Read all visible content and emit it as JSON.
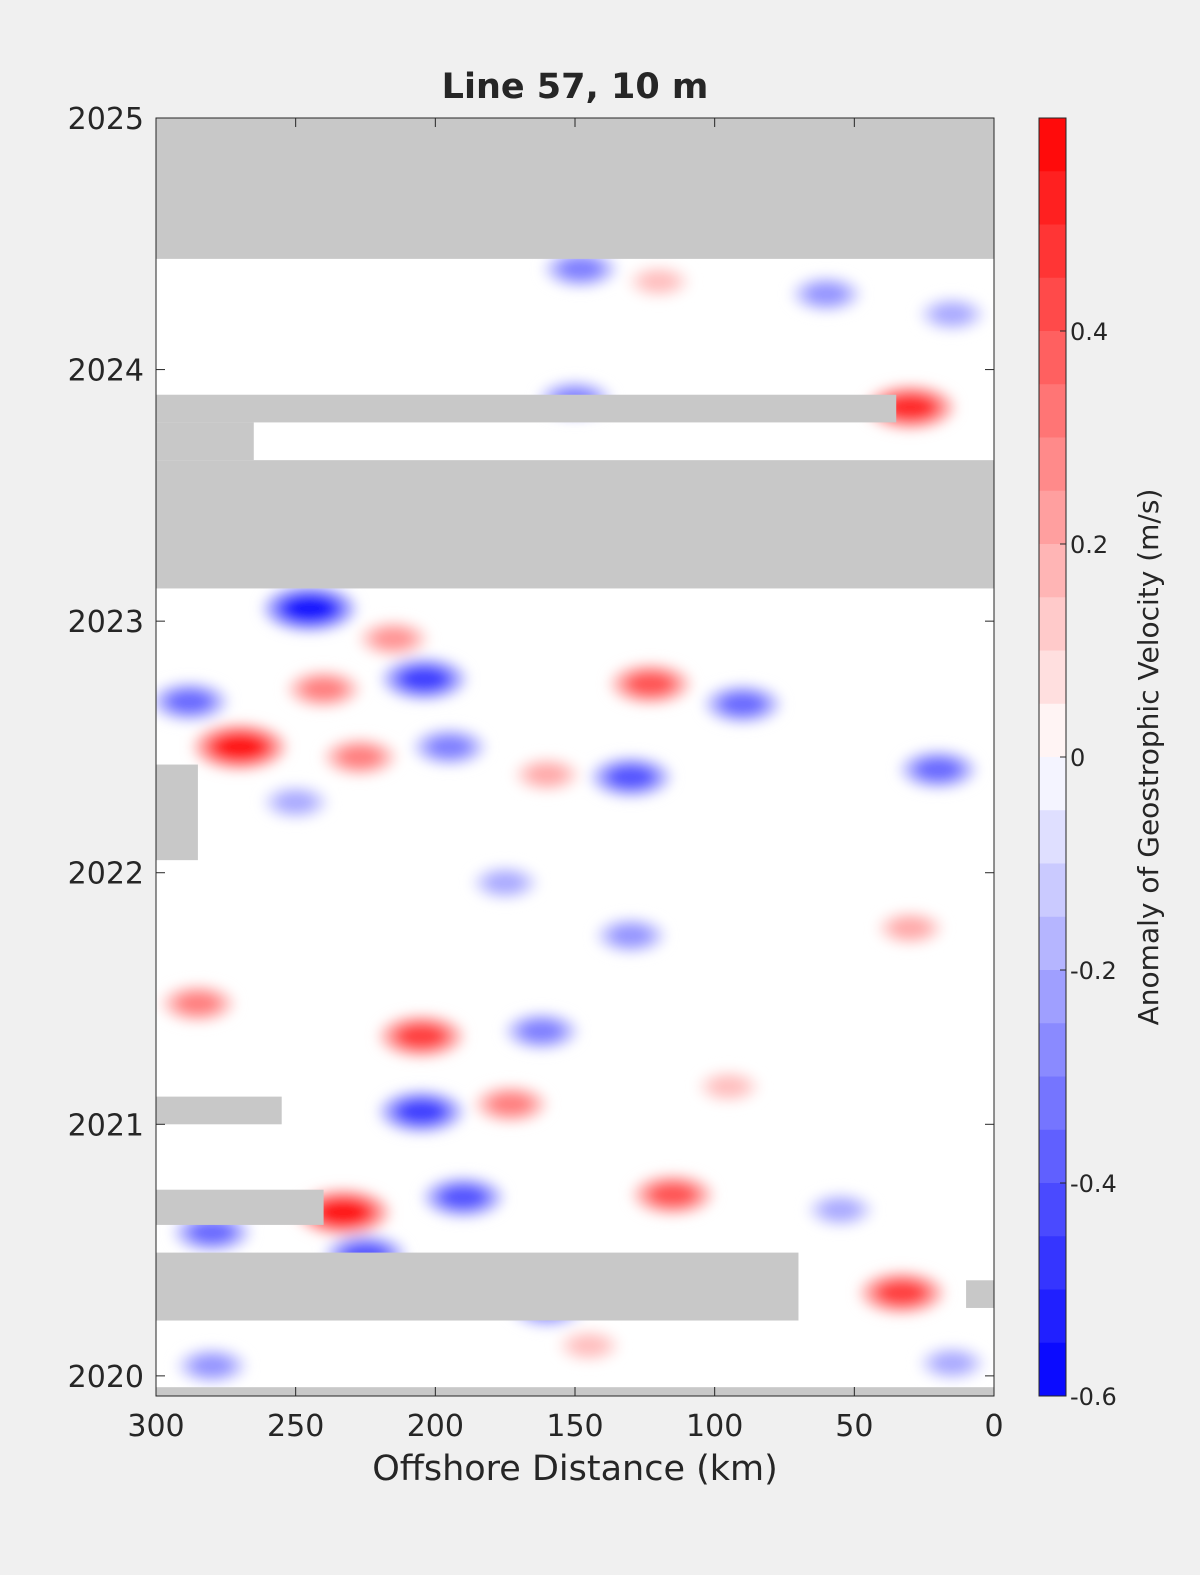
{
  "chart_data": {
    "type": "heatmap",
    "title": "Line 57, 10 m",
    "xlabel": "Offshore Distance (km)",
    "ylabel": "",
    "colorbar_label": "Anomaly of Geostrophic Velocity (m/s)",
    "xlim": [
      300,
      0
    ],
    "ylim": [
      2019.92,
      2025
    ],
    "x_ticks": [
      300,
      250,
      200,
      150,
      100,
      50,
      0
    ],
    "y_ticks": [
      2020,
      2021,
      2022,
      2023,
      2024,
      2025
    ],
    "clim": [
      -0.6,
      0.6
    ],
    "colorbar_ticks": [
      -0.6,
      -0.4,
      -0.2,
      0,
      0.2,
      0.4
    ],
    "colorbar_tick_labels": [
      "-0.6",
      "-0.4",
      "-0.2",
      "0",
      "0.2",
      "0.4"
    ],
    "levels": 24,
    "colormap": {
      "negative": "#0000ff",
      "zero": "#ffffff",
      "positive": "#ff0000"
    },
    "missing_color": "#c8c8c8",
    "grid": false,
    "missing_data_regions": [
      {
        "x0": 300,
        "x1": 0,
        "y0": 2024.44,
        "y1": 2025
      },
      {
        "x0": 300,
        "x1": 0,
        "y0": 2023.13,
        "y1": 2023.64
      },
      {
        "x0": 300,
        "x1": 35,
        "y0": 2023.79,
        "y1": 2023.9
      },
      {
        "x0": 300,
        "x1": 265,
        "y0": 2023.64,
        "y1": 2023.79
      },
      {
        "x0": 300,
        "x1": 285,
        "y0": 2022.05,
        "y1": 2022.43
      },
      {
        "x0": 300,
        "x1": 255,
        "y0": 2021.0,
        "y1": 2021.11
      },
      {
        "x0": 300,
        "x1": 240,
        "y0": 2020.6,
        "y1": 2020.74
      },
      {
        "x0": 300,
        "x1": 70,
        "y0": 2020.22,
        "y1": 2020.49
      },
      {
        "x0": 10,
        "x1": 0,
        "y0": 2020.27,
        "y1": 2020.38
      },
      {
        "x0": 300,
        "x1": 0,
        "y0": 2019.92,
        "y1": 2019.955
      }
    ],
    "anomaly_features": [
      {
        "x": 148,
        "y": 2024.4,
        "value": -0.3
      },
      {
        "x": 120,
        "y": 2024.35,
        "value": 0.15
      },
      {
        "x": 60,
        "y": 2024.3,
        "value": -0.25
      },
      {
        "x": 15,
        "y": 2024.22,
        "value": -0.2
      },
      {
        "x": 30,
        "y": 2023.85,
        "value": 0.5
      },
      {
        "x": 150,
        "y": 2023.88,
        "value": -0.3
      },
      {
        "x": 245,
        "y": 2023.05,
        "value": -0.55
      },
      {
        "x": 215,
        "y": 2022.93,
        "value": 0.25
      },
      {
        "x": 240,
        "y": 2022.73,
        "value": 0.3
      },
      {
        "x": 288,
        "y": 2022.68,
        "value": -0.35
      },
      {
        "x": 204,
        "y": 2022.77,
        "value": -0.45
      },
      {
        "x": 123,
        "y": 2022.75,
        "value": 0.4
      },
      {
        "x": 90,
        "y": 2022.67,
        "value": -0.35
      },
      {
        "x": 270,
        "y": 2022.5,
        "value": 0.55
      },
      {
        "x": 227,
        "y": 2022.46,
        "value": 0.3
      },
      {
        "x": 195,
        "y": 2022.5,
        "value": -0.3
      },
      {
        "x": 130,
        "y": 2022.38,
        "value": -0.4
      },
      {
        "x": 160,
        "y": 2022.39,
        "value": 0.2
      },
      {
        "x": 20,
        "y": 2022.41,
        "value": -0.35
      },
      {
        "x": 250,
        "y": 2022.28,
        "value": -0.2
      },
      {
        "x": 175,
        "y": 2021.96,
        "value": -0.2
      },
      {
        "x": 130,
        "y": 2021.75,
        "value": -0.25
      },
      {
        "x": 30,
        "y": 2021.78,
        "value": 0.2
      },
      {
        "x": 285,
        "y": 2021.48,
        "value": 0.3
      },
      {
        "x": 205,
        "y": 2021.35,
        "value": 0.45
      },
      {
        "x": 162,
        "y": 2021.37,
        "value": -0.3
      },
      {
        "x": 205,
        "y": 2021.05,
        "value": -0.45
      },
      {
        "x": 173,
        "y": 2021.08,
        "value": 0.3
      },
      {
        "x": 95,
        "y": 2021.15,
        "value": 0.15
      },
      {
        "x": 233,
        "y": 2020.65,
        "value": 0.55
      },
      {
        "x": 190,
        "y": 2020.71,
        "value": -0.4
      },
      {
        "x": 115,
        "y": 2020.72,
        "value": 0.4
      },
      {
        "x": 55,
        "y": 2020.66,
        "value": -0.2
      },
      {
        "x": 280,
        "y": 2020.57,
        "value": -0.35
      },
      {
        "x": 225,
        "y": 2020.48,
        "value": -0.4
      },
      {
        "x": 160,
        "y": 2020.27,
        "value": -0.3
      },
      {
        "x": 33,
        "y": 2020.33,
        "value": 0.45
      },
      {
        "x": 280,
        "y": 2020.04,
        "value": -0.25
      },
      {
        "x": 15,
        "y": 2020.05,
        "value": -0.2
      },
      {
        "x": 145,
        "y": 2020.12,
        "value": 0.15
      }
    ]
  }
}
